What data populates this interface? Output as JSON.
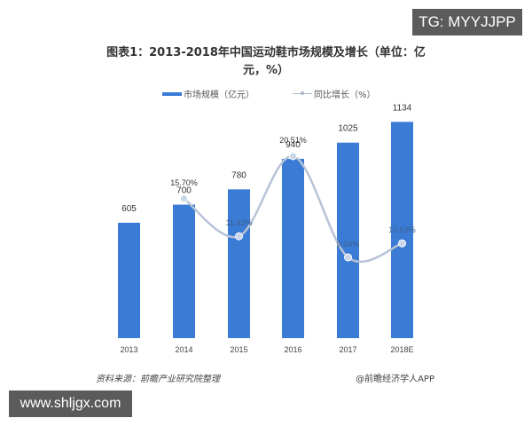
{
  "watermarks": {
    "tg": "TG: MYYJJPP",
    "site": "www.shljgx.com"
  },
  "title": "图表1：2013-2018年中国运动鞋市场规模及增长（单位：亿元，%）",
  "title_line1": "图表1：2013-2018年中国运动鞋市场规模及增长（单位：亿",
  "title_line2": "元，%）",
  "legend": {
    "bar": "市场规模（亿元）",
    "line": "同比增长（%）"
  },
  "footer": {
    "source": "资料来源：前瞻产业研究院整理",
    "credit": "@前瞻经济学人APP"
  },
  "colors": {
    "bar": "#3a7bd5",
    "line": "#b7c3d6",
    "marker": "#c9d6ea"
  },
  "chart_data": {
    "type": "bar",
    "title": "图表1：2013-2018年中国运动鞋市场规模及增长（单位：亿元，%）",
    "categories": [
      "2013",
      "2014",
      "2015",
      "2016",
      "2017",
      "2018E"
    ],
    "series": [
      {
        "name": "市场规模（亿元）",
        "type": "bar",
        "values": [
          605,
          700,
          780,
          940,
          1025,
          1134
        ]
      },
      {
        "name": "同比增长（%）",
        "type": "line",
        "values": [
          null,
          15.7,
          11.43,
          20.51,
          9.04,
          10.63
        ]
      }
    ],
    "bar_labels": [
      "605",
      "700",
      "780",
      "940",
      "1025",
      "1134"
    ],
    "line_labels": [
      "",
      "15.70%",
      "11.43%",
      "20.51%",
      "9.04%",
      "10.63%"
    ],
    "xlabel": "",
    "ylabel": "",
    "grid": false,
    "legend_position": "top"
  }
}
